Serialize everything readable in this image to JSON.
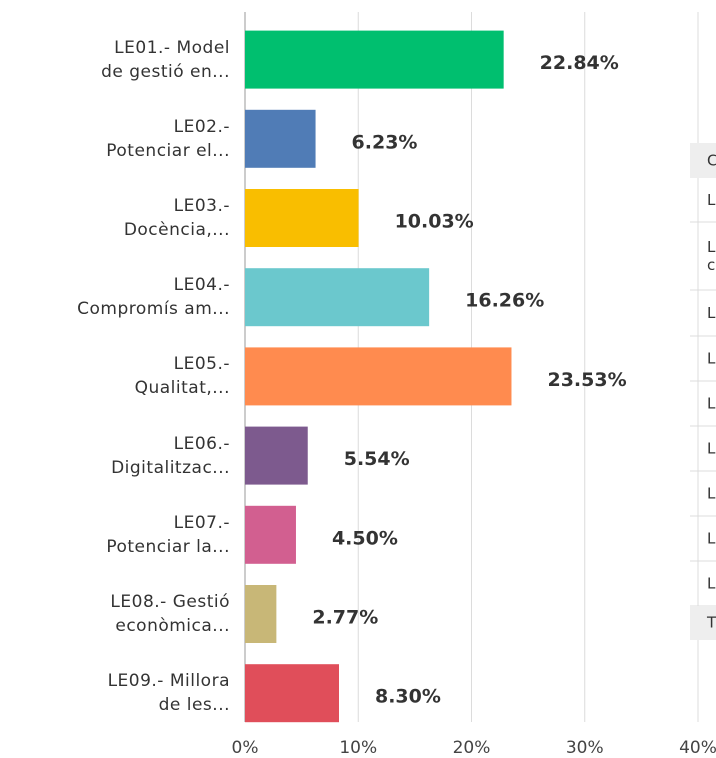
{
  "chart_data": {
    "type": "bar",
    "orientation": "horizontal",
    "categories": [
      "LE01.- Model\nde gestió en...",
      "LE02.-\nPotenciar el...",
      "LE03.-\nDocència,...",
      "LE04.-\nCompromís am...",
      "LE05.-\nQualitat,...",
      "LE06.-\nDigitalitzac...",
      "LE07.-\nPotenciar la...",
      "LE08.- Gestió\neconòmica...",
      "LE09.- Millora\nde les..."
    ],
    "values": [
      22.84,
      6.23,
      10.03,
      16.26,
      23.53,
      5.54,
      4.5,
      2.77,
      8.3
    ],
    "value_labels": [
      "22.84%",
      "6.23%",
      "10.03%",
      "16.26%",
      "23.53%",
      "5.54%",
      "4.50%",
      "2.77%",
      "8.30%"
    ],
    "colors": [
      "#00bf6f",
      "#507cb6",
      "#f9be00",
      "#6bc8cd",
      "#ff8b4f",
      "#7d5a8e",
      "#d25f90",
      "#c8b777",
      "#e04e5a"
    ],
    "xlim": [
      0,
      40
    ],
    "xticks": [
      {
        "value": 0,
        "label": "0%"
      },
      {
        "value": 10,
        "label": "10%"
      },
      {
        "value": 20,
        "label": "20%"
      },
      {
        "value": 30,
        "label": "30%"
      },
      {
        "value": 40,
        "label": "40%"
      }
    ],
    "grid": true
  },
  "side_table": {
    "header": "C",
    "rows": [
      "L",
      "L\nc",
      "L",
      "L",
      "L",
      "L",
      "L",
      "L",
      "L"
    ],
    "footer": "T"
  }
}
